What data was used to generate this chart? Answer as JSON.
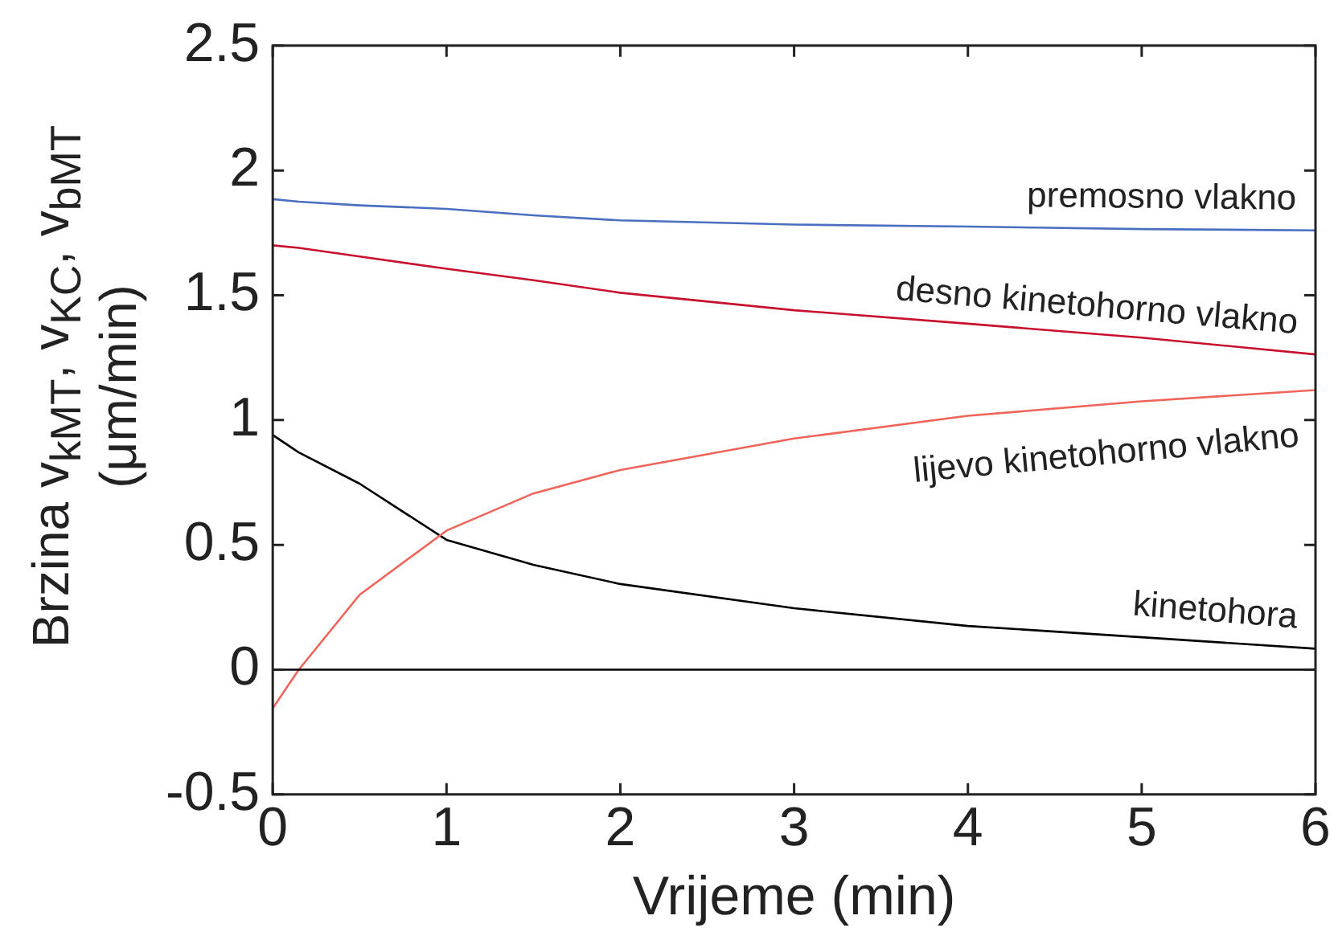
{
  "chart_data": {
    "type": "line",
    "xlabel": "Vrijeme (min)",
    "ylabel": "Brzina v$_{kMT}$, v$_{KC}$, v$_{bMT}$ (μm/min)",
    "x": [
      0,
      0.15,
      0.5,
      1,
      1.5,
      2,
      3,
      4,
      5,
      6
    ],
    "series": [
      {
        "name": "premosno vlakno",
        "color": "#4a6fc0",
        "values": [
          1.885,
          1.875,
          1.86,
          1.846,
          1.82,
          1.8,
          1.783,
          1.775,
          1.765,
          1.76
        ]
      },
      {
        "name": "desno kinetohorno vlakno",
        "color": "#c8102e",
        "values": [
          1.7,
          1.69,
          1.655,
          1.606,
          1.56,
          1.51,
          1.44,
          1.386,
          1.33,
          1.263
        ]
      },
      {
        "name": "lijevo kinetohorno vlakno",
        "color": "#f0645a",
        "values": [
          -0.155,
          0,
          0.3,
          0.557,
          0.706,
          0.8,
          0.926,
          1.017,
          1.075,
          1.12
        ]
      },
      {
        "name": "kinetohora",
        "color": "#000000",
        "values": [
          0.94,
          0.87,
          0.745,
          0.52,
          0.42,
          0.343,
          0.246,
          0.175,
          0.13,
          0.084
        ]
      }
    ],
    "xlim": [
      0,
      6
    ],
    "xticks": [
      0,
      1,
      2,
      3,
      4,
      5,
      6
    ],
    "ylim": [
      -0.5,
      2.5
    ],
    "yticks": [
      -0.5,
      0,
      0.5,
      1,
      1.5,
      2,
      2.5
    ],
    "ref_lines": [
      {
        "axis": "y",
        "value": 0,
        "color": "#000000"
      }
    ],
    "grid": false,
    "legend": false,
    "marker": "none",
    "line_style": "solid"
  }
}
